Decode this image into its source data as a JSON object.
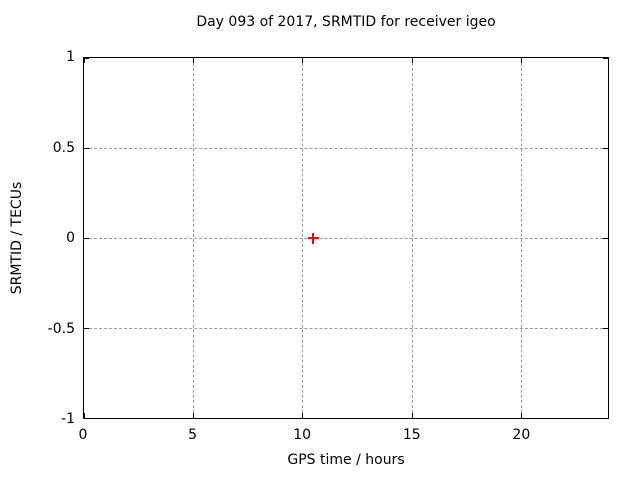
{
  "chart_data": {
    "type": "scatter",
    "title": "Day 093 of 2017, SRMTID for receiver igeo",
    "xlabel": "GPS time / hours",
    "ylabel": "SRMTID / TECUs",
    "xlim": [
      0,
      24
    ],
    "ylim": [
      -1,
      1
    ],
    "xticks": [
      0,
      5,
      10,
      15,
      20
    ],
    "yticks": [
      -1,
      -0.5,
      0,
      0.5,
      1
    ],
    "grid": true,
    "legend": "none",
    "series": [
      {
        "name": "SRMTID",
        "marker": "plus",
        "color": "#ff0000",
        "points": [
          [
            10.5,
            0.0
          ]
        ]
      }
    ],
    "colors": {
      "background": "#ffffff",
      "axis": "#000000",
      "grid": "#9c9c9c",
      "marker": "#ff0000"
    }
  }
}
